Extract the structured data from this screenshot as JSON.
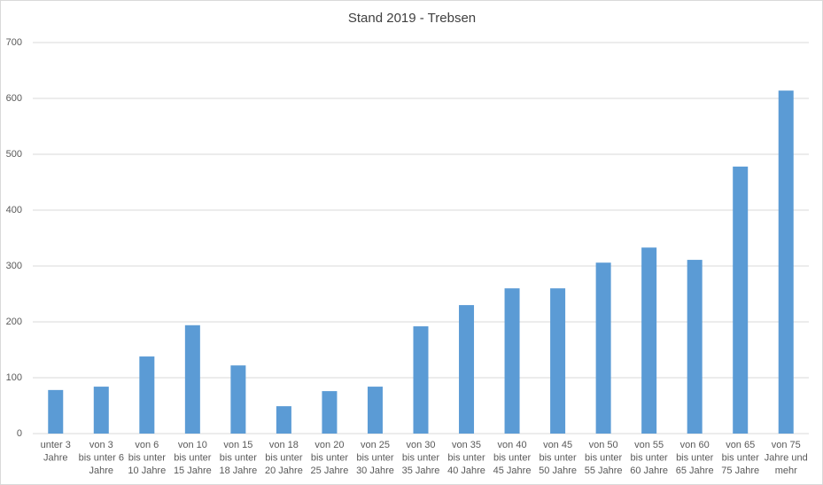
{
  "chart_data": {
    "type": "bar",
    "title": "Stand 2019 - Trebsen",
    "categories": [
      [
        "unter 3",
        "Jahre"
      ],
      [
        "von 3",
        "bis unter 6",
        "Jahre"
      ],
      [
        "von 6",
        "bis unter",
        "10 Jahre"
      ],
      [
        "von 10",
        "bis unter",
        "15 Jahre"
      ],
      [
        "von 15",
        "bis unter",
        "18 Jahre"
      ],
      [
        "von 18",
        "bis unter",
        "20 Jahre"
      ],
      [
        "von 20",
        "bis unter",
        "25 Jahre"
      ],
      [
        "von 25",
        "bis unter",
        "30 Jahre"
      ],
      [
        "von 30",
        "bis unter",
        "35 Jahre"
      ],
      [
        "von 35",
        "bis unter",
        "40 Jahre"
      ],
      [
        "von 40",
        "bis unter",
        "45 Jahre"
      ],
      [
        "von 45",
        "bis unter",
        "50 Jahre"
      ],
      [
        "von 50",
        "bis unter",
        "55 Jahre"
      ],
      [
        "von 55",
        "bis unter",
        "60 Jahre"
      ],
      [
        "von 60",
        "bis unter",
        "65 Jahre"
      ],
      [
        "von 65",
        "bis unter",
        "75 Jahre"
      ],
      [
        "von 75",
        "Jahre und",
        "mehr"
      ]
    ],
    "values": [
      78,
      84,
      138,
      194,
      122,
      49,
      76,
      84,
      192,
      230,
      260,
      260,
      306,
      333,
      311,
      478,
      614
    ],
    "color": "#5b9bd5",
    "ylim": [
      0,
      700
    ],
    "yticks": [
      0,
      100,
      200,
      300,
      400,
      500,
      600,
      700
    ],
    "grid": true
  }
}
